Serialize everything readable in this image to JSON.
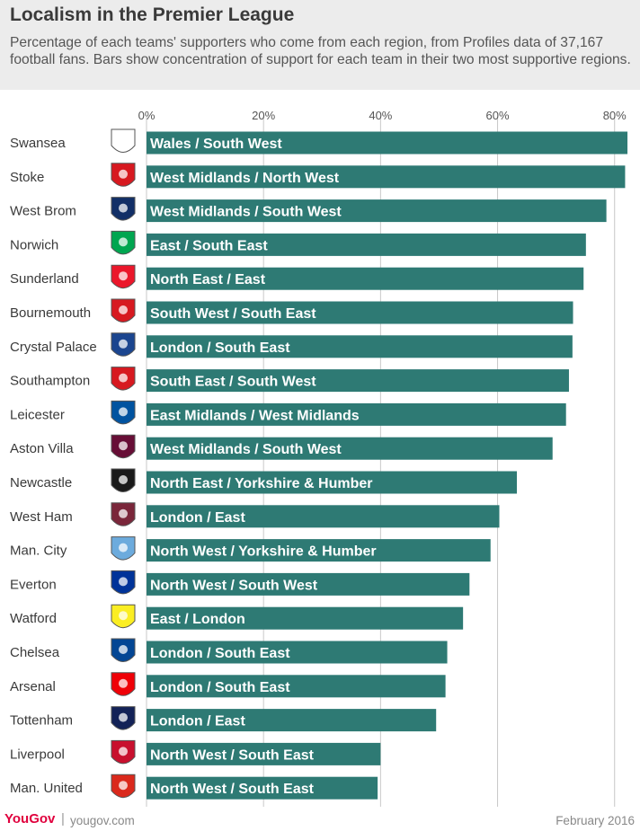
{
  "header": {
    "title": "Localism in the Premier League",
    "subtitle": "Percentage of each teams' supporters who come from each region, from Profiles data of 37,167 football fans. Bars show concentration of support for each team in their two most supportive regions."
  },
  "footer": {
    "brand": "YouGov",
    "separator": "|",
    "url": "yougov.com",
    "date": "February 2016"
  },
  "colors": {
    "bar": "#2e7a74",
    "bar_text": "#ffffff",
    "grid": "#c8c8c8",
    "header_bg": "#ececec",
    "brand": "#e0003d"
  },
  "chart_data": {
    "type": "bar",
    "orientation": "horizontal",
    "title": "Localism in the Premier League",
    "xlim": [
      0,
      82.5
    ],
    "xticks": [
      0,
      20,
      40,
      60,
      80
    ],
    "xtick_labels": [
      "0%",
      "20%",
      "40%",
      "60%",
      "80%"
    ],
    "grid": true,
    "categories": [
      "Swansea",
      "Stoke",
      "West Brom",
      "Norwich",
      "Sunderland",
      "Bournemouth",
      "Crystal Palace",
      "Southampton",
      "Leicester",
      "Aston Villa",
      "Newcastle",
      "West Ham",
      "Man. City",
      "Everton",
      "Watford",
      "Chelsea",
      "Arsenal",
      "Tottenham",
      "Liverpool",
      "Man. United"
    ],
    "bar_labels": [
      "Wales / South West",
      "West Midlands / North West",
      "West Midlands / South West",
      "East / South East",
      "North East / East",
      "South West / South East",
      "London / South East",
      "South East / South West",
      "East Midlands / West Midlands",
      "West Midlands / South West",
      "North East / Yorkshire & Humber",
      "London / East",
      "North West / Yorkshire & Humber",
      "North West / South West",
      "East / London",
      "London / South East",
      "London / South East",
      "London / East",
      "North West / South East",
      "North West / South East"
    ],
    "values": [
      82.2,
      81.8,
      78.6,
      75.1,
      74.7,
      72.9,
      72.8,
      72.2,
      71.7,
      69.4,
      63.3,
      60.3,
      58.8,
      55.2,
      54.1,
      51.4,
      51.1,
      49.5,
      40.0,
      39.5
    ],
    "badge_icons": [
      "swansea-crest-icon",
      "stoke-crest-icon",
      "west-brom-crest-icon",
      "norwich-crest-icon",
      "sunderland-crest-icon",
      "bournemouth-crest-icon",
      "crystal-palace-crest-icon",
      "southampton-crest-icon",
      "leicester-crest-icon",
      "aston-villa-crest-icon",
      "newcastle-crest-icon",
      "west-ham-crest-icon",
      "man-city-crest-icon",
      "everton-crest-icon",
      "watford-crest-icon",
      "chelsea-crest-icon",
      "arsenal-crest-icon",
      "tottenham-crest-icon",
      "liverpool-crest-icon",
      "man-united-crest-icon"
    ],
    "badge_colors": [
      "#ffffff",
      "#d71920",
      "#122f67",
      "#00a650",
      "#eb172b",
      "#d71920",
      "#1b458f",
      "#d71920",
      "#0053a0",
      "#670e36",
      "#1a1a1a",
      "#7a263a",
      "#6cabdd",
      "#003399",
      "#fbee23",
      "#034694",
      "#ef0107",
      "#132257",
      "#c8102e",
      "#da291c"
    ]
  }
}
